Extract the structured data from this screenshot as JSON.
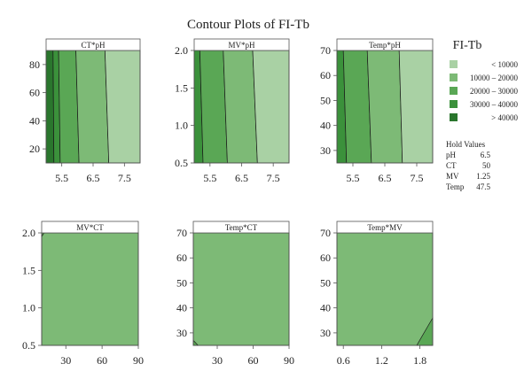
{
  "chart_data": {
    "type": "contour",
    "title": "Contour Plots of FI-Tb",
    "legend": {
      "title": "FI-Tb",
      "placement": "right",
      "items": [
        {
          "label": "< 10000",
          "color": "#a9d1a4"
        },
        {
          "label": "10000 – 20000",
          "color": "#7dba76"
        },
        {
          "label": "20000 – 30000",
          "color": "#5aa755"
        },
        {
          "label": "30000 – 40000",
          "color": "#3b913b"
        },
        {
          "label": "> 40000",
          "color": "#2a762d"
        }
      ]
    },
    "hold_values": {
      "title": "Hold Values",
      "items": [
        {
          "factor": "pH",
          "value": "6.5"
        },
        {
          "factor": "CT",
          "value": "50"
        },
        {
          "factor": "MV",
          "value": "1.25"
        },
        {
          "factor": "Temp",
          "value": "47.5"
        }
      ]
    },
    "panels": [
      {
        "label": "CT*pH",
        "xlim": [
          5,
          8
        ],
        "ylim": [
          10,
          90
        ],
        "xticks": [
          "5.5",
          "6.5",
          "7.5"
        ],
        "xtick_values": [
          5.5,
          6.5,
          7.5
        ],
        "yticks": [
          "20",
          "40",
          "60",
          "80"
        ],
        "ytick_values": [
          20,
          40,
          60,
          80
        ],
        "regions": [
          {
            "level": "> 40000",
            "polygon": [
              [
                5,
                10
              ],
              [
                5.25,
                10
              ],
              [
                5.22,
                90
              ],
              [
                5,
                90
              ]
            ]
          },
          {
            "level": "30000 – 40000",
            "polygon": [
              [
                5.25,
                10
              ],
              [
                5.45,
                10
              ],
              [
                5.4,
                90
              ],
              [
                5.22,
                90
              ]
            ]
          },
          {
            "level": "20000 – 30000",
            "polygon": [
              [
                5.45,
                10
              ],
              [
                6.05,
                10
              ],
              [
                5.95,
                90
              ],
              [
                5.4,
                90
              ]
            ]
          },
          {
            "level": "10000 – 20000",
            "polygon": [
              [
                6.05,
                10
              ],
              [
                7.0,
                10
              ],
              [
                6.88,
                90
              ],
              [
                5.95,
                90
              ]
            ]
          },
          {
            "level": "< 10000",
            "polygon": [
              [
                7.0,
                10
              ],
              [
                8,
                10
              ],
              [
                8,
                90
              ],
              [
                6.88,
                90
              ]
            ]
          }
        ]
      },
      {
        "label": "MV*pH",
        "xlim": [
          5,
          8
        ],
        "ylim": [
          0.5,
          2.0
        ],
        "xticks": [
          "5.5",
          "6.5",
          "7.5"
        ],
        "xtick_values": [
          5.5,
          6.5,
          7.5
        ],
        "yticks": [
          "0.5",
          "1.0",
          "1.5",
          "2.0"
        ],
        "ytick_values": [
          0.5,
          1.0,
          1.5,
          2.0
        ],
        "regions": [
          {
            "level": "30000 – 40000",
            "polygon": [
              [
                5,
                0.5
              ],
              [
                5.28,
                0.5
              ],
              [
                5.18,
                2.0
              ],
              [
                5,
                2.0
              ]
            ]
          },
          {
            "level": "20000 – 30000",
            "polygon": [
              [
                5.28,
                0.5
              ],
              [
                6.05,
                0.5
              ],
              [
                5.92,
                2.0
              ],
              [
                5.18,
                2.0
              ]
            ]
          },
          {
            "level": "10000 – 20000",
            "polygon": [
              [
                6.05,
                0.5
              ],
              [
                7.0,
                0.5
              ],
              [
                6.85,
                2.0
              ],
              [
                5.92,
                2.0
              ]
            ]
          },
          {
            "level": "< 10000",
            "polygon": [
              [
                7.0,
                0.5
              ],
              [
                8,
                0.5
              ],
              [
                8,
                2.0
              ],
              [
                6.85,
                2.0
              ]
            ]
          }
        ]
      },
      {
        "label": "Temp*pH",
        "xlim": [
          5,
          8
        ],
        "ylim": [
          25,
          70
        ],
        "xticks": [
          "5.5",
          "6.5",
          "7.5"
        ],
        "xtick_values": [
          5.5,
          6.5,
          7.5
        ],
        "yticks": [
          "30",
          "40",
          "50",
          "60",
          "70"
        ],
        "ytick_values": [
          30,
          40,
          50,
          60,
          70
        ],
        "regions": [
          {
            "level": "30000 – 40000",
            "polygon": [
              [
                5,
                25
              ],
              [
                5.3,
                25
              ],
              [
                5.2,
                70
              ],
              [
                5,
                70
              ]
            ]
          },
          {
            "level": "20000 – 30000",
            "polygon": [
              [
                5.3,
                25
              ],
              [
                6.08,
                25
              ],
              [
                5.95,
                70
              ],
              [
                5.2,
                70
              ]
            ]
          },
          {
            "level": "10000 – 20000",
            "polygon": [
              [
                6.08,
                25
              ],
              [
                7.05,
                25
              ],
              [
                6.95,
                70
              ],
              [
                5.95,
                70
              ]
            ]
          },
          {
            "level": "< 10000",
            "polygon": [
              [
                7.05,
                25
              ],
              [
                8,
                25
              ],
              [
                8,
                70
              ],
              [
                6.95,
                70
              ]
            ]
          }
        ]
      },
      {
        "label": "MV*CT",
        "xlim": [
          10,
          90
        ],
        "ylim": [
          0.5,
          2.0
        ],
        "xticks": [
          "30",
          "60",
          "90"
        ],
        "xtick_values": [
          30,
          60,
          90
        ],
        "yticks": [
          "0.5",
          "1.0",
          "1.5",
          "2.0"
        ],
        "ytick_values": [
          0.5,
          1.0,
          1.5,
          2.0
        ],
        "regions": [
          {
            "level": "10000 – 20000",
            "polygon": [
              [
                10,
                0.5
              ],
              [
                90,
                0.5
              ],
              [
                90,
                2.0
              ],
              [
                10,
                2.0
              ]
            ]
          },
          {
            "level": "20000 – 30000",
            "polygon": [
              [
                10,
                1.95
              ],
              [
                12,
                2.0
              ],
              [
                10,
                2.0
              ]
            ]
          }
        ]
      },
      {
        "label": "Temp*CT",
        "xlim": [
          10,
          90
        ],
        "ylim": [
          25,
          70
        ],
        "xticks": [
          "30",
          "60",
          "90"
        ],
        "xtick_values": [
          30,
          60,
          90
        ],
        "yticks": [
          "30",
          "40",
          "50",
          "60",
          "70"
        ],
        "ytick_values": [
          30,
          40,
          50,
          60,
          70
        ],
        "regions": [
          {
            "level": "10000 – 20000",
            "polygon": [
              [
                10,
                25
              ],
              [
                90,
                25
              ],
              [
                90,
                70
              ],
              [
                10,
                70
              ]
            ]
          },
          {
            "level": "20000 – 30000",
            "polygon": [
              [
                10,
                25
              ],
              [
                14,
                25
              ],
              [
                10,
                27
              ]
            ]
          }
        ]
      },
      {
        "label": "Temp*MV",
        "xlim": [
          0.5,
          2.0
        ],
        "ylim": [
          25,
          70
        ],
        "xticks": [
          "0.6",
          "1.2",
          "1.8"
        ],
        "xtick_values": [
          0.6,
          1.2,
          1.8
        ],
        "yticks": [
          "30",
          "40",
          "50",
          "60",
          "70"
        ],
        "ytick_values": [
          30,
          40,
          50,
          60,
          70
        ],
        "regions": [
          {
            "level": "10000 – 20000",
            "polygon": [
              [
                0.5,
                25
              ],
              [
                2.0,
                25
              ],
              [
                2.0,
                70
              ],
              [
                0.5,
                70
              ]
            ]
          },
          {
            "level": "20000 – 30000",
            "polygon": [
              [
                1.75,
                25
              ],
              [
                2.0,
                25
              ],
              [
                2.0,
                36
              ]
            ]
          }
        ]
      }
    ]
  }
}
